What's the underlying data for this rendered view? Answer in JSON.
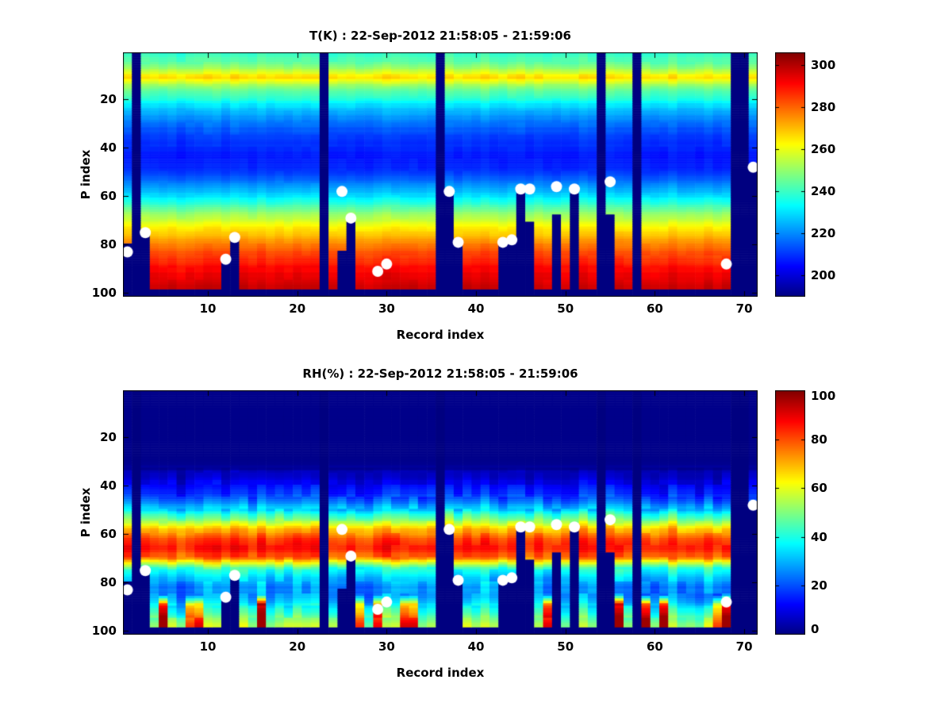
{
  "figure": {
    "background": "#ffffff",
    "text_color": "#000000"
  },
  "plots": [
    {
      "key": "T",
      "title": "T(K) : 22-Sep-2012 21:58:05 - 21:59:06",
      "xlabel": "Record index",
      "ylabel": "P index",
      "x_ticks": [
        10,
        20,
        30,
        40,
        50,
        60,
        70
      ],
      "y_ticks": [
        20,
        40,
        60,
        80,
        100
      ],
      "colorbar_ticks": [
        200,
        220,
        240,
        260,
        280,
        300
      ]
    },
    {
      "key": "RH",
      "title": "RH(%) : 22-Sep-2012 21:58:05 - 21:59:06",
      "xlabel": "Record index",
      "ylabel": "P index",
      "x_ticks": [
        10,
        20,
        30,
        40,
        50,
        60,
        70
      ],
      "y_ticks": [
        20,
        40,
        60,
        80,
        100
      ],
      "colorbar_ticks": [
        0,
        20,
        40,
        60,
        80,
        100
      ]
    }
  ],
  "chart_data": [
    {
      "type": "heatmap",
      "title": "T(K) : 22-Sep-2012 21:58:05 - 21:59:06",
      "xlabel": "Record index",
      "ylabel": "P index",
      "colormap": "jet",
      "x_range": [
        1,
        71
      ],
      "y_range": [
        1,
        101
      ],
      "y_reversed": true,
      "clim": [
        190,
        306
      ],
      "colorbar_ticks": [
        200,
        220,
        240,
        260,
        280,
        300
      ],
      "missing_color": "#000080",
      "profile_points": [
        [
          1,
          240
        ],
        [
          3,
          242
        ],
        [
          5,
          245
        ],
        [
          7,
          251
        ],
        [
          9,
          259
        ],
        [
          10,
          264
        ],
        [
          11,
          266
        ],
        [
          12,
          262
        ],
        [
          14,
          252
        ],
        [
          16,
          246
        ],
        [
          18,
          241
        ],
        [
          20,
          237
        ],
        [
          22,
          231
        ],
        [
          25,
          225
        ],
        [
          28,
          220
        ],
        [
          31,
          216
        ],
        [
          34,
          213
        ],
        [
          37,
          211
        ],
        [
          40,
          209
        ],
        [
          43,
          208
        ],
        [
          46,
          207
        ],
        [
          49,
          210
        ],
        [
          52,
          214
        ],
        [
          55,
          220
        ],
        [
          58,
          226
        ],
        [
          61,
          233
        ],
        [
          64,
          241
        ],
        [
          67,
          250
        ],
        [
          70,
          257
        ],
        [
          73,
          264
        ],
        [
          76,
          270
        ],
        [
          79,
          275
        ],
        [
          82,
          281
        ],
        [
          85,
          285
        ],
        [
          88,
          289
        ],
        [
          91,
          292
        ],
        [
          94,
          295
        ],
        [
          97,
          297
        ],
        [
          101,
          300
        ]
      ],
      "noise_amp_points": [
        [
          1,
          2.6
        ],
        [
          10,
          2.8
        ],
        [
          20,
          2.0
        ],
        [
          45,
          1.6
        ],
        [
          60,
          2.0
        ],
        [
          80,
          2.0
        ],
        [
          101,
          2.4
        ]
      ],
      "row_jitter": 1.6,
      "missing_records": [
        2,
        23,
        36,
        54,
        58,
        69,
        70
      ],
      "valid_to_default": 98,
      "valid_to_overrides": {
        "1": 79,
        "3": 74,
        "12": 85,
        "13": 76,
        "25": 82,
        "26": 70,
        "37": 58,
        "38": 79,
        "43": 79,
        "44": 78,
        "45": 58,
        "46": 70,
        "49": 67,
        "51": 58,
        "55": 67,
        "71": 48
      },
      "markers": [
        [
          1,
          83
        ],
        [
          3,
          75
        ],
        [
          12,
          86
        ],
        [
          13,
          77
        ],
        [
          25,
          58
        ],
        [
          26,
          69
        ],
        [
          29,
          91
        ],
        [
          30,
          88
        ],
        [
          37,
          58
        ],
        [
          38,
          79
        ],
        [
          43,
          79
        ],
        [
          44,
          78
        ],
        [
          45,
          57
        ],
        [
          46,
          57
        ],
        [
          49,
          56
        ],
        [
          51,
          57
        ],
        [
          55,
          54
        ],
        [
          68,
          88
        ],
        [
          71,
          48
        ]
      ],
      "marker_color": "#ffffff",
      "marker_radius": 7
    },
    {
      "type": "heatmap",
      "title": "RH(%) : 22-Sep-2012 21:58:05 - 21:59:06",
      "xlabel": "Record index",
      "ylabel": "P index",
      "colormap": "jet",
      "x_range": [
        1,
        71
      ],
      "y_range": [
        1,
        101
      ],
      "y_reversed": true,
      "clim": [
        0,
        100
      ],
      "colorbar_ticks": [
        0,
        20,
        40,
        60,
        80,
        100
      ],
      "missing_color": "#000080",
      "profile_points": [
        [
          1,
          1
        ],
        [
          28,
          1
        ],
        [
          31,
          1.5
        ],
        [
          33,
          3
        ],
        [
          35,
          6
        ],
        [
          38,
          10
        ],
        [
          41,
          14
        ],
        [
          44,
          19
        ],
        [
          47,
          26
        ],
        [
          50,
          34
        ],
        [
          53,
          47
        ],
        [
          55,
          56
        ],
        [
          57,
          66
        ],
        [
          59,
          72
        ],
        [
          61,
          78
        ],
        [
          63,
          83
        ],
        [
          65,
          85
        ],
        [
          67,
          84
        ],
        [
          69,
          79
        ],
        [
          70,
          74
        ],
        [
          71,
          66
        ],
        [
          72,
          57
        ],
        [
          73,
          50
        ],
        [
          74,
          44
        ],
        [
          76,
          37
        ],
        [
          78,
          33
        ],
        [
          80,
          30
        ],
        [
          82,
          27
        ],
        [
          84,
          26
        ],
        [
          86,
          27
        ],
        [
          88,
          31
        ],
        [
          90,
          36
        ],
        [
          92,
          42
        ],
        [
          94,
          48
        ],
        [
          96,
          52
        ],
        [
          98,
          55
        ]
      ],
      "noise_amp_points": [
        [
          1,
          0
        ],
        [
          32,
          0
        ],
        [
          34,
          2
        ],
        [
          38,
          5
        ],
        [
          44,
          7
        ],
        [
          50,
          8
        ],
        [
          56,
          6
        ],
        [
          62,
          5
        ],
        [
          68,
          5
        ],
        [
          72,
          7
        ],
        [
          78,
          8
        ],
        [
          84,
          8
        ],
        [
          90,
          9
        ],
        [
          101,
          9
        ]
      ],
      "row_jitter": 2.5,
      "missing_records": [
        2,
        23,
        36,
        54,
        58,
        69,
        70
      ],
      "valid_to_default": 98,
      "valid_to_overrides": {
        "1": 79,
        "3": 74,
        "12": 85,
        "13": 76,
        "25": 82,
        "26": 70,
        "37": 58,
        "38": 79,
        "43": 79,
        "44": 78,
        "45": 58,
        "46": 70,
        "49": 67,
        "51": 58,
        "55": 67,
        "71": 48
      },
      "wet_records": [
        5,
        8,
        9,
        16,
        27,
        29,
        32,
        33,
        48,
        56,
        59,
        61,
        67,
        68
      ],
      "wet_boost": 55,
      "markers": [
        [
          1,
          83
        ],
        [
          3,
          75
        ],
        [
          12,
          86
        ],
        [
          13,
          77
        ],
        [
          25,
          58
        ],
        [
          26,
          69
        ],
        [
          29,
          91
        ],
        [
          30,
          88
        ],
        [
          37,
          58
        ],
        [
          38,
          79
        ],
        [
          43,
          79
        ],
        [
          44,
          78
        ],
        [
          45,
          57
        ],
        [
          46,
          57
        ],
        [
          49,
          56
        ],
        [
          51,
          57
        ],
        [
          55,
          54
        ],
        [
          68,
          88
        ],
        [
          71,
          48
        ]
      ],
      "marker_color": "#ffffff",
      "marker_radius": 7
    }
  ],
  "layout_note": "two stacked pseudocolor panels with jet colorbars"
}
